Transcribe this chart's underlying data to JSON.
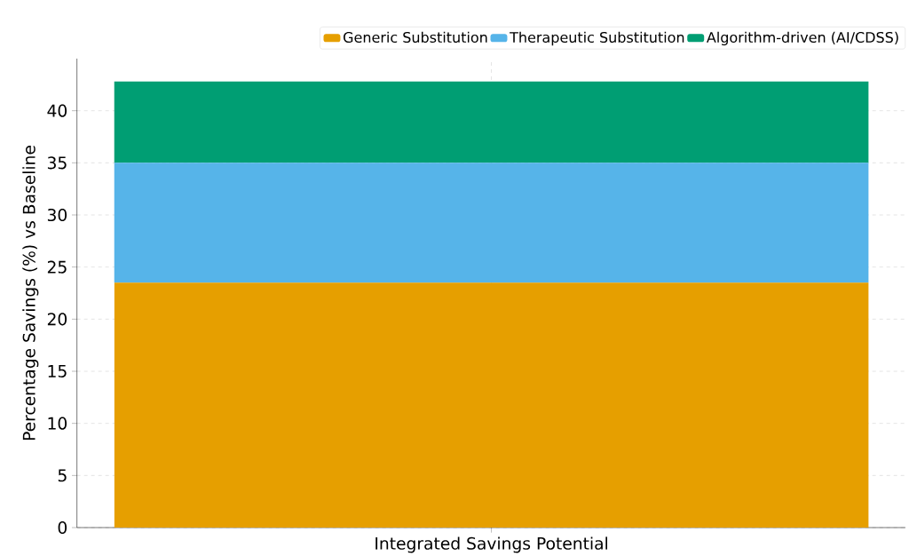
{
  "chart_data": {
    "type": "bar",
    "stacked": true,
    "ylabel": "Percentage Savings (%) vs Baseline",
    "categories": [
      "Integrated Savings Potential"
    ],
    "series": [
      {
        "name": "Generic Substitution",
        "color": "#e69f00",
        "values": [
          23.5
        ]
      },
      {
        "name": "Therapeutic Substitution",
        "color": "#56b4e9",
        "values": [
          11.5
        ]
      },
      {
        "name": "Algorithm-driven (AI/CDSS)",
        "color": "#009e73",
        "values": [
          7.8
        ]
      }
    ],
    "ylim": [
      0,
      45
    ],
    "yticks": [
      0,
      5,
      10,
      15,
      20,
      25,
      30,
      35,
      40
    ],
    "grid": true,
    "legend": "top right"
  }
}
